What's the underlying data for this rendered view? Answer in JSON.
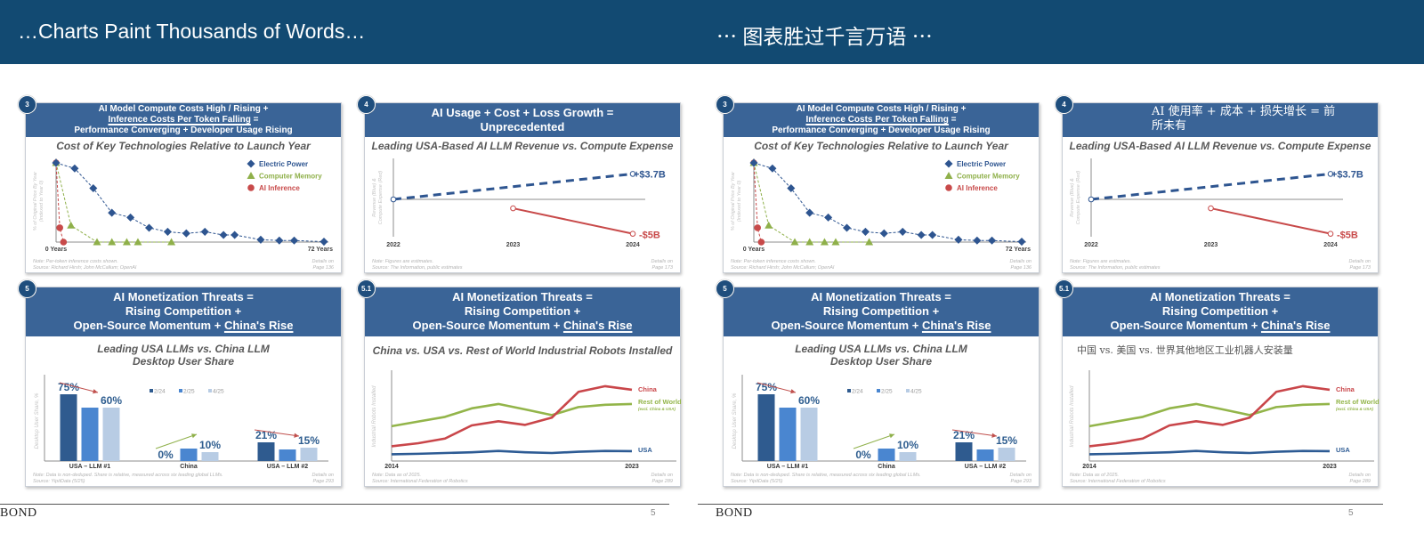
{
  "colors": {
    "band": "#124a72",
    "card_header": "#3a6497",
    "blue": "#2e5590",
    "green": "#8fb04a",
    "red": "#c84a4a",
    "bar_dark": "#2f5b8f",
    "bar_mid": "#4a86d0",
    "bar_light": "#b8cce4"
  },
  "panels": [
    {
      "title": "…Charts Paint Thousands of Words…",
      "brand": "BOND",
      "page_number": "5",
      "cards": [
        {
          "badge": "3",
          "header": [
            [
              {
                "text": "AI Model Compute Costs High / Rising +"
              }
            ],
            [
              {
                "text": "Inference Costs Per Token Falling",
                "u": true
              },
              {
                "text": " ="
              }
            ],
            [
              {
                "text": "Performance Converging + Developer Usage Rising"
              }
            ]
          ],
          "subtitle": [
            "Cost of Key Technologies Relative to Launch Year"
          ],
          "notes": [
            "Note: Per-token inference costs shown.",
            "Source: Richard Hirsh; John McCallum; OpenAI"
          ],
          "details": [
            "Details on",
            "Page 136"
          ]
        },
        {
          "badge": "4",
          "header": [
            [
              {
                "text": "AI Usage + Cost + Loss Growth ="
              }
            ],
            [
              {
                "text": "Unprecedented"
              }
            ]
          ],
          "subtitle": [
            "Leading USA-Based AI LLM Revenue vs. Compute Expense"
          ],
          "notes": [
            "Note: Figures are estimates.",
            "Source: The Information, public estimates"
          ],
          "details": [
            "Details on",
            "Page 173"
          ]
        },
        {
          "badge": "5",
          "header": [
            [
              {
                "text": "AI Monetization Threats ="
              }
            ],
            [
              {
                "text": "Rising Competition +"
              }
            ],
            [
              {
                "text": "Open-Source Momentum + "
              },
              {
                "text": "China's Rise",
                "u": true
              }
            ]
          ],
          "subtitle": [
            "Leading USA LLMs vs. China LLM",
            "Desktop User Share"
          ],
          "notes": [
            "Note: Data is non-deduped. Share is relative, measured across six leading global LLMs.",
            "Source: YipitData (5/25)"
          ],
          "details": [
            "Details on",
            "Page 293"
          ]
        },
        {
          "badge": "5.1",
          "header": [
            [
              {
                "text": "AI Monetization Threats ="
              }
            ],
            [
              {
                "text": "Rising Competition +"
              }
            ],
            [
              {
                "text": "Open-Source Momentum + "
              },
              {
                "text": "China's Rise",
                "u": true
              }
            ]
          ],
          "subtitle": [
            "China vs. USA vs. Rest of World Industrial Robots Installed"
          ],
          "notes": [
            "Note: Data as of 2025.",
            "Source: International Federation of Robotics"
          ],
          "details": [
            "Details on",
            "Page 289"
          ]
        }
      ]
    },
    {
      "title": "⋯ 图表胜过千言万语 ⋯",
      "brand": "BOND",
      "page_number": "5",
      "cards": [
        {
          "badge": "3",
          "header": [
            [
              {
                "text": "AI Model Compute Costs High / Rising +"
              }
            ],
            [
              {
                "text": "Inference Costs Per Token Falling",
                "u": true
              },
              {
                "text": " ="
              }
            ],
            [
              {
                "text": "Performance Converging + Developer Usage Rising"
              }
            ]
          ],
          "subtitle": [
            "Cost of Key Technologies Relative to Launch Year"
          ],
          "notes": [
            "Note: Per-token inference costs shown.",
            "Source: Richard Hirsh; John McCallum; OpenAI"
          ],
          "details": [
            "Details on",
            "Page 136"
          ]
        },
        {
          "badge": "4",
          "header_plain": "AI 使用率 + 成本 + 损失增长 = 前所未有",
          "subtitle": [
            "Leading USA-Based AI LLM Revenue vs. Compute Expense"
          ],
          "notes": [
            "Note: Figures are estimates.",
            "Source: The Information, public estimates"
          ],
          "details": [
            "Details on",
            "Page 173"
          ]
        },
        {
          "badge": "5",
          "header": [
            [
              {
                "text": "AI Monetization Threats ="
              }
            ],
            [
              {
                "text": "Rising Competition +"
              }
            ],
            [
              {
                "text": "Open-Source Momentum + "
              },
              {
                "text": "China's Rise",
                "u": true
              }
            ]
          ],
          "subtitle": [
            "Leading USA LLMs vs. China LLM",
            "Desktop User Share"
          ],
          "notes": [
            "Note: Data is non-deduped. Share is relative, measured across six leading global LLMs.",
            "Source: YipitData (5/25)"
          ],
          "details": [
            "Details on",
            "Page 293"
          ]
        },
        {
          "badge": "5.1",
          "header": [
            [
              {
                "text": "AI Monetization Threats ="
              }
            ],
            [
              {
                "text": "Rising Competition +"
              }
            ],
            [
              {
                "text": "Open-Source Momentum + "
              },
              {
                "text": "China's Rise",
                "u": true
              }
            ]
          ],
          "subtitle_plain": "中国 vs. 美国 vs. 世界其他地区工业机器人安装量",
          "notes": [
            "Note: Data as of 2025.",
            "Source: International Federation of Robotics"
          ],
          "details": [
            "Details on",
            "Page 289"
          ]
        }
      ]
    }
  ],
  "chart_data": [
    {
      "type": "line",
      "ylabel": [
        "% of Original Price By Year",
        "(Indexed to Year 0)"
      ],
      "xtick_labels": [
        "0 Years",
        "72 Years"
      ],
      "xlim": [
        0,
        72
      ],
      "ylim": [
        0,
        100
      ],
      "legend_position": "top-right",
      "series": [
        {
          "name": "Electric Power",
          "marker": "diamond",
          "color": "#2e5590",
          "x": [
            0,
            5,
            10,
            15,
            20,
            25,
            30,
            35,
            40,
            45,
            48,
            55,
            60,
            64,
            72
          ],
          "y": [
            100,
            93,
            68,
            37,
            31,
            18,
            13,
            11,
            13,
            9,
            9,
            3,
            2,
            2,
            0.5
          ]
        },
        {
          "name": "Computer Memory",
          "marker": "triangle",
          "color": "#8fb04a",
          "x": [
            0,
            4,
            11,
            15,
            19,
            22,
            31
          ],
          "y": [
            100,
            21,
            0,
            0,
            0,
            0,
            0
          ]
        },
        {
          "name": "AI Inference",
          "marker": "circle",
          "color": "#c84a4a",
          "x": [
            0,
            1,
            2
          ],
          "y": [
            100,
            18,
            0
          ]
        }
      ]
    },
    {
      "type": "line",
      "ylabel": [
        "Revenue (Blue) &",
        "Compute Expense (Red)"
      ],
      "categories": [
        "2022",
        "2023",
        "2024"
      ],
      "series": [
        {
          "label": "+$3.7B",
          "color": "#2e5590",
          "style": "dashed",
          "x": [
            2022,
            2024
          ],
          "y": [
            0,
            3.7
          ]
        },
        {
          "label": "-$5B",
          "color": "#c84a4a",
          "style": "solid",
          "x": [
            2023,
            2024
          ],
          "y": [
            -1.3,
            -5
          ]
        }
      ]
    },
    {
      "type": "bar",
      "ylabel": "Desktop User Share, %",
      "categories": [
        "USA – LLM #1",
        "China",
        "USA – LLM #2"
      ],
      "legend": [
        "2/24",
        "2/25",
        "4/25"
      ],
      "series_colors": [
        "#2f5b8f",
        "#4a86d0",
        "#b8cce4"
      ],
      "values": [
        [
          75,
          60,
          60
        ],
        [
          0,
          14,
          10
        ],
        [
          21,
          13,
          15
        ]
      ],
      "data_labels": [
        [
          "75%",
          null,
          "60%"
        ],
        [
          "0%",
          null,
          "10%"
        ],
        [
          "21%",
          null,
          "15%"
        ]
      ],
      "trend_arrows": [
        "down",
        "up",
        "down"
      ]
    },
    {
      "type": "line",
      "ylabel": "Industrial Robots Installed",
      "xtick_labels": [
        "2014",
        "2023"
      ],
      "x": [
        2014,
        2015,
        2016,
        2017,
        2018,
        2019,
        2020,
        2021,
        2022,
        2023
      ],
      "series": [
        {
          "name": "China",
          "color": "#c9464a",
          "y": [
            57,
            69,
            87,
            138,
            154,
            140,
            168,
            268,
            290,
            276
          ]
        },
        {
          "name": "Rest of World",
          "note": "(excl. China & USA)",
          "color": "#93b54a",
          "y": [
            135,
            153,
            171,
            204,
            221,
            200,
            178,
            209,
            218,
            221
          ]
        },
        {
          "name": "USA",
          "color": "#2d5b94",
          "y": [
            26,
            28,
            31,
            34,
            39,
            34,
            31,
            36,
            39,
            38
          ]
        }
      ]
    }
  ]
}
